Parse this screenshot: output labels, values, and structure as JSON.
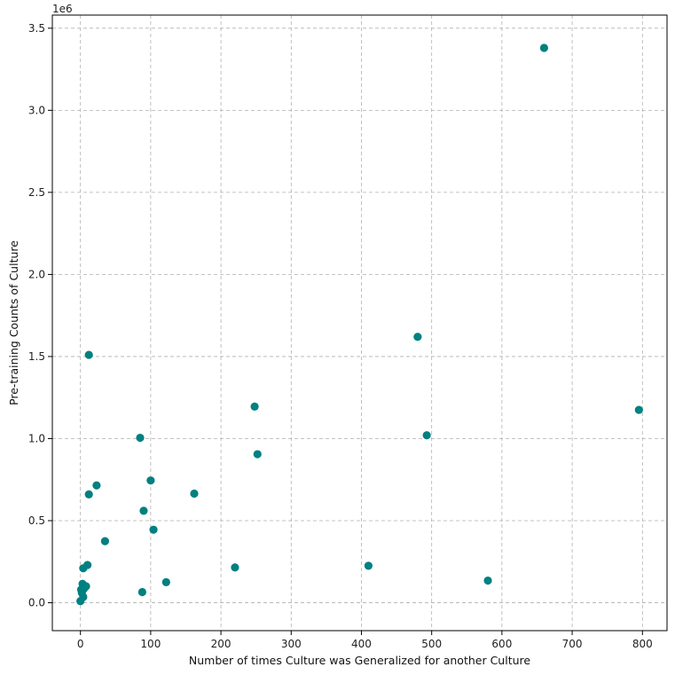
{
  "chart_data": {
    "type": "scatter",
    "title": "",
    "xlabel": "Number of times Culture was Generalized for another Culture",
    "ylabel": "Pre-training Counts of Culture",
    "y_offset_text": "1e6",
    "xlim": [
      -40,
      835
    ],
    "ylim": [
      -0.17,
      3.58
    ],
    "x_ticks": [
      0,
      100,
      200,
      300,
      400,
      500,
      600,
      700,
      800
    ],
    "x_tick_labels": [
      "0",
      "100",
      "200",
      "300",
      "400",
      "500",
      "600",
      "700",
      "800"
    ],
    "y_ticks": [
      0.0,
      0.5,
      1.0,
      1.5,
      2.0,
      2.5,
      3.0,
      3.5
    ],
    "y_tick_labels": [
      "0.0",
      "0.5",
      "1.0",
      "1.5",
      "2.0",
      "2.5",
      "3.0",
      "3.5"
    ],
    "grid": true,
    "marker_color": "#008080",
    "x": [
      660,
      480,
      493,
      795,
      248,
      252,
      85,
      12,
      23,
      12,
      100,
      162,
      90,
      104,
      35,
      10,
      4,
      410,
      220,
      580,
      122,
      88,
      8,
      3,
      5,
      2,
      4,
      1,
      0
    ],
    "y": [
      3.38,
      1.62,
      1.02,
      1.175,
      1.195,
      0.905,
      1.005,
      1.51,
      0.715,
      0.66,
      0.745,
      0.665,
      0.56,
      0.445,
      0.375,
      0.23,
      0.21,
      0.225,
      0.215,
      0.135,
      0.125,
      0.065,
      0.1,
      0.115,
      0.085,
      0.06,
      0.035,
      0.08,
      0.01
    ]
  }
}
